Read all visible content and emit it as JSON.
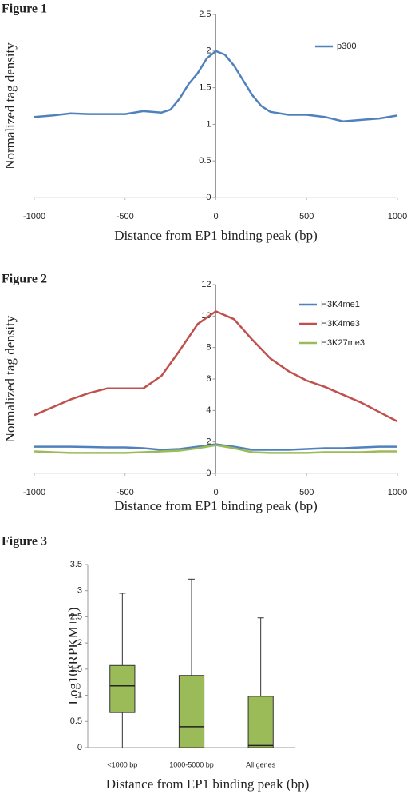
{
  "chart_data": [
    {
      "type": "line",
      "label": "Figure 1",
      "x_label": "Distance from EP1 binding peak (bp)",
      "y_label": "Normalized tag density",
      "xlim": [
        -1000,
        1000
      ],
      "xticks": [
        -1000,
        -500,
        0,
        500,
        1000
      ],
      "ylim": [
        0,
        2.5
      ],
      "yticks": [
        0,
        0.5,
        1,
        1.5,
        2,
        2.5
      ],
      "x": [
        -1000,
        -900,
        -800,
        -700,
        -600,
        -500,
        -400,
        -300,
        -250,
        -200,
        -150,
        -100,
        -50,
        0,
        50,
        100,
        150,
        200,
        250,
        300,
        400,
        500,
        600,
        700,
        800,
        900,
        1000
      ],
      "series": [
        {
          "name": "p300",
          "color": "#4f81bd",
          "values": [
            1.1,
            1.12,
            1.15,
            1.14,
            1.14,
            1.14,
            1.18,
            1.16,
            1.2,
            1.35,
            1.55,
            1.7,
            1.9,
            2.0,
            1.95,
            1.8,
            1.6,
            1.4,
            1.25,
            1.17,
            1.13,
            1.13,
            1.1,
            1.04,
            1.06,
            1.08,
            1.12
          ]
        }
      ]
    },
    {
      "type": "line",
      "label": "Figure 2",
      "x_label": "Distance from EP1 binding peak (bp)",
      "y_label": "Normalized tag density",
      "xlim": [
        -1000,
        1000
      ],
      "xticks": [
        -1000,
        -500,
        0,
        500,
        1000
      ],
      "ylim": [
        0,
        12
      ],
      "yticks": [
        0,
        2,
        4,
        6,
        8,
        10,
        12
      ],
      "x": [
        -1000,
        -900,
        -800,
        -700,
        -600,
        -500,
        -400,
        -300,
        -200,
        -100,
        0,
        100,
        200,
        300,
        400,
        500,
        600,
        700,
        800,
        900,
        1000
      ],
      "series": [
        {
          "name": "H3K4me1",
          "color": "#4f81bd",
          "values": [
            1.7,
            1.7,
            1.7,
            1.68,
            1.65,
            1.65,
            1.6,
            1.5,
            1.55,
            1.7,
            1.85,
            1.7,
            1.5,
            1.5,
            1.5,
            1.55,
            1.6,
            1.6,
            1.65,
            1.7,
            1.7
          ]
        },
        {
          "name": "H3K4me3",
          "color": "#c0504d",
          "values": [
            3.7,
            4.2,
            4.7,
            5.1,
            5.4,
            5.4,
            5.4,
            6.2,
            7.8,
            9.5,
            10.3,
            9.8,
            8.5,
            7.3,
            6.5,
            5.9,
            5.5,
            5.0,
            4.5,
            3.9,
            3.3
          ]
        },
        {
          "name": "H3K27me3",
          "color": "#9bbb59",
          "values": [
            1.4,
            1.35,
            1.3,
            1.3,
            1.3,
            1.3,
            1.35,
            1.4,
            1.45,
            1.6,
            1.8,
            1.6,
            1.35,
            1.3,
            1.3,
            1.3,
            1.35,
            1.35,
            1.35,
            1.4,
            1.4
          ]
        }
      ]
    },
    {
      "type": "box",
      "label": "Figure 3",
      "x_label": "Distance from EP1 binding peak (bp)",
      "y_label": "Log10(RPKM+1)",
      "ylim": [
        0,
        3.5
      ],
      "yticks": [
        0,
        0.5,
        1,
        1.5,
        2,
        2.5,
        3,
        3.5
      ],
      "color": "#9bbb59",
      "categories": [
        "<1000 bp",
        "1000-5000 bp",
        "All genes"
      ],
      "boxes": [
        {
          "min": 0,
          "q1": 0.67,
          "median": 1.18,
          "q3": 1.57,
          "max": 2.95
        },
        {
          "min": 0,
          "q1": 0,
          "median": 0.4,
          "q3": 1.38,
          "max": 3.22
        },
        {
          "min": 0,
          "q1": 0,
          "median": 0.04,
          "q3": 0.98,
          "max": 2.48
        }
      ]
    }
  ]
}
